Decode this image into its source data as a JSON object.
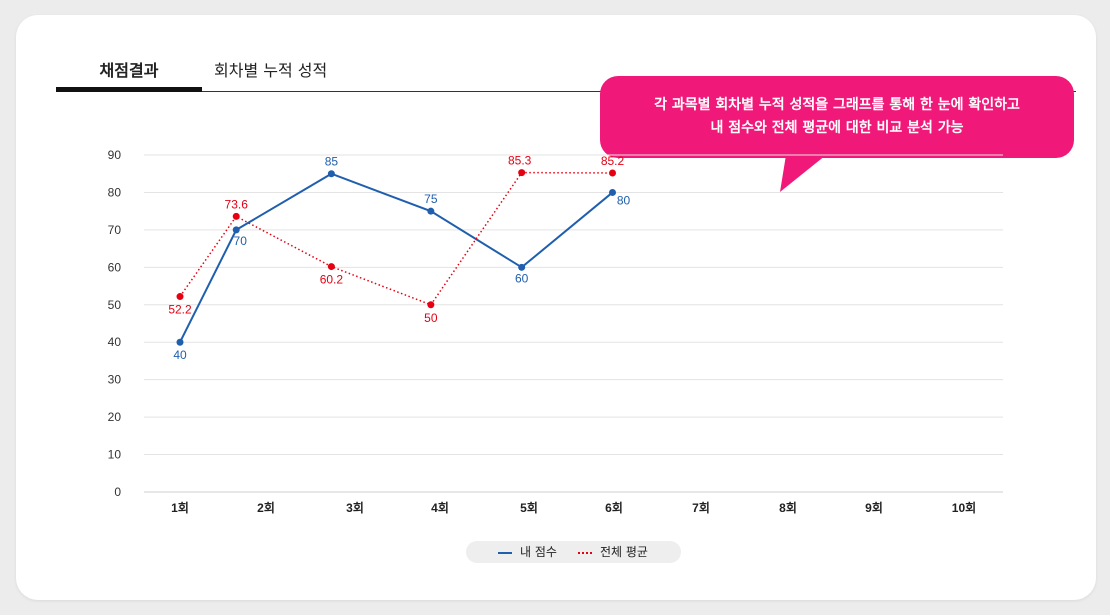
{
  "tabs": [
    {
      "label": "채점결과",
      "active": true
    },
    {
      "label": "회차별 누적 성적",
      "active": false
    }
  ],
  "callout": {
    "line1": "각 과목별 회차별 누적 성적을 그래프를 통해 한 눈에 확인하고",
    "line2": "내 점수와 전체 평균에 대한 비교 분석 가능",
    "color": "#f0197a"
  },
  "chart_data": {
    "type": "line",
    "categories": [
      "1회",
      "2회",
      "3회",
      "4회",
      "5회",
      "6회",
      "7회",
      "8회",
      "9회",
      "10회"
    ],
    "ylim": [
      0,
      90
    ],
    "yticks": [
      0,
      10,
      20,
      30,
      40,
      50,
      60,
      70,
      80,
      90
    ],
    "grid": true,
    "legend_position": "bottom-center",
    "series": [
      {
        "name": "내 점수",
        "color": "#1f5fad",
        "style": "solid",
        "points": [
          [
            0.0,
            40
          ],
          [
            0.65,
            70
          ],
          [
            1.75,
            85
          ],
          [
            2.9,
            75
          ],
          [
            3.95,
            60
          ],
          [
            5.0,
            80
          ]
        ],
        "labels": [
          "40",
          "70",
          "85",
          "75",
          "60",
          "80"
        ]
      },
      {
        "name": "전체 평균",
        "color": "#e60012",
        "style": "dotted",
        "points": [
          [
            0.0,
            52.2
          ],
          [
            0.65,
            73.6
          ],
          [
            1.75,
            60.2
          ],
          [
            2.9,
            50
          ],
          [
            3.95,
            85.3
          ],
          [
            5.0,
            85.2
          ]
        ],
        "labels": [
          "52.2",
          "73.6",
          "60.2",
          "50",
          "85.3",
          "85.2"
        ]
      }
    ]
  }
}
